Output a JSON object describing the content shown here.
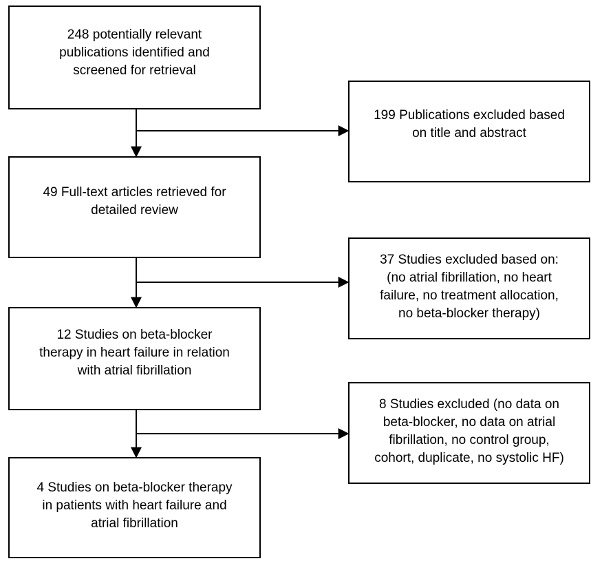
{
  "nodes": [
    {
      "lines": [
        "248 potentially relevant",
        "publications identified and",
        "screened for retrieval"
      ]
    },
    {
      "lines": [
        "49 Full-text articles retrieved for",
        "detailed review"
      ]
    },
    {
      "lines": [
        "12 Studies on beta-blocker",
        "therapy in heart failure in relation",
        "with atrial fibrillation"
      ]
    },
    {
      "lines": [
        "4 Studies on beta-blocker therapy",
        "in patients with heart failure and",
        "atrial fibrillation"
      ]
    }
  ],
  "exclusions": [
    {
      "lines": [
        "199 Publications excluded based",
        "on title and abstract"
      ]
    },
    {
      "lines": [
        "37 Studies excluded based on:",
        "(no atrial fibrillation, no heart",
        "failure, no treatment allocation,",
        "no beta-blocker therapy)"
      ]
    },
    {
      "lines": [
        "8 Studies excluded (no data on",
        "beta-blocker, no data on atrial",
        "fibrillation, no control group,",
        "cohort, duplicate, no systolic HF)"
      ]
    }
  ]
}
